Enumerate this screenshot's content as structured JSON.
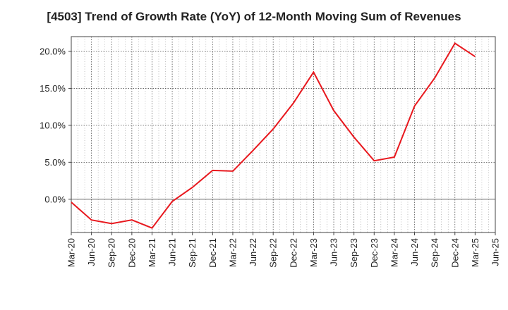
{
  "chart_data": {
    "type": "line",
    "title": "[4503]  Trend of Growth Rate (YoY) of 12-Month Moving Sum of Revenues",
    "xlabel": "",
    "ylabel": "",
    "x": [
      "Mar-20",
      "Jun-20",
      "Sep-20",
      "Dec-20",
      "Mar-21",
      "Jun-21",
      "Sep-21",
      "Dec-21",
      "Mar-22",
      "Jun-22",
      "Sep-22",
      "Dec-22",
      "Mar-23",
      "Jun-23",
      "Sep-23",
      "Dec-23",
      "Mar-24",
      "Jun-24",
      "Sep-24",
      "Dec-24",
      "Mar-25",
      "Jun-25"
    ],
    "series": [
      {
        "color": "#e8181e",
        "values": [
          -0.4,
          -2.8,
          -3.3,
          -2.8,
          -3.9,
          -0.3,
          1.6,
          3.9,
          3.8,
          6.6,
          9.5,
          13.0,
          17.2,
          12.0,
          8.4,
          5.2,
          5.7,
          12.6,
          16.4,
          21.1,
          19.3,
          null
        ]
      }
    ],
    "yticks": [
      0,
      5,
      10,
      15,
      20
    ],
    "ytick_labels": [
      "0.0%",
      "5.0%",
      "10.0%",
      "15.0%",
      "20.0%"
    ],
    "ylim": [
      -4.5,
      22.0
    ],
    "grid": true,
    "legend": "none"
  }
}
